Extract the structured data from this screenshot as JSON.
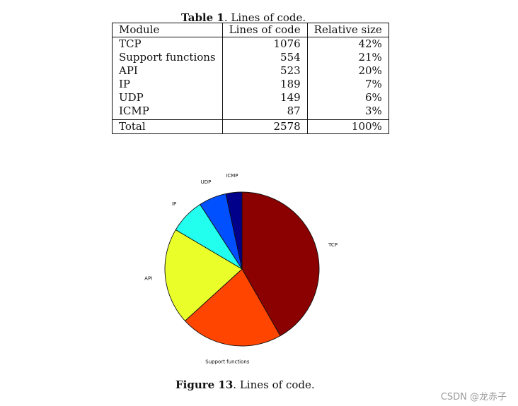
{
  "table": {
    "caption_label": "Table 1",
    "caption_text": ". Lines of code.",
    "headers": [
      "Module",
      "Lines of code",
      "Relative size"
    ],
    "rows": [
      [
        "TCP",
        "1076",
        "42%"
      ],
      [
        "Support functions",
        "554",
        "21%"
      ],
      [
        "API",
        "523",
        "20%"
      ],
      [
        "IP",
        "189",
        "7%"
      ],
      [
        "UDP",
        "149",
        "6%"
      ],
      [
        "ICMP",
        "87",
        "3%"
      ]
    ],
    "total": [
      "Total",
      "2578",
      "100%"
    ]
  },
  "figure": {
    "caption_label": "Figure 13",
    "caption_text": ". Lines of code."
  },
  "chart_data": {
    "type": "pie",
    "labels": [
      "TCP",
      "Support functions",
      "API",
      "IP",
      "UDP",
      "ICMP"
    ],
    "values": [
      1076,
      554,
      523,
      189,
      149,
      87
    ],
    "colors": [
      "#8b0000",
      "#ff4500",
      "#eaff2a",
      "#22ffee",
      "#0050ff",
      "#00008b"
    ],
    "start": "12 o'clock",
    "direction": "clockwise"
  },
  "watermark": "CSDN @龙赤子"
}
